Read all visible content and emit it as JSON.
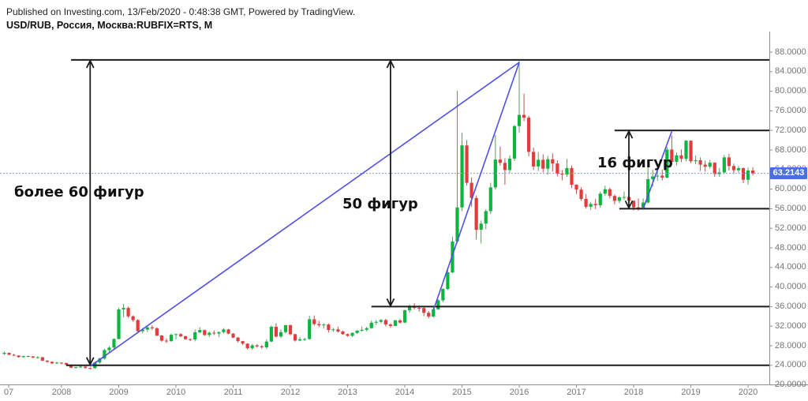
{
  "header": {
    "published": "Published on Investing.com, 13/Feb/2020 - 0:48:38 GMT, Powered by TradingView.",
    "symbol": "USD/RUB, Россия, Москва:RUBFIX=RTS, M"
  },
  "annotations": {
    "left_label": "более 60 фигур",
    "mid_label": "50 фигур",
    "right_label": "16 фигур"
  },
  "price_axis": {
    "labels": [
      "88.0000",
      "84.0000",
      "80.0000",
      "76.0000",
      "72.0000",
      "68.0000",
      "64.0000",
      "60.0000",
      "56.0000",
      "52.0000",
      "48.0000",
      "44.0000",
      "40.0000",
      "36.0000",
      "32.0000",
      "28.0000",
      "24.0000",
      "20.0000"
    ],
    "current_price": "63.2143",
    "badge_color": "#4a6fe0",
    "text_color": "#757575"
  },
  "time_axis": {
    "labels": [
      "07",
      "2008",
      "2009",
      "2010",
      "2011",
      "2012",
      "2013",
      "2014",
      "2015",
      "2016",
      "2017",
      "2018",
      "2019",
      "2020"
    ]
  },
  "chart_data": {
    "type": "candlestick",
    "title": "USD/RUB monthly candlesticks",
    "symbol": "USD/RUB RUBFIX=RTS",
    "interval": "M",
    "start": "2007-01",
    "ylim": [
      20.5,
      88
    ],
    "current_price": 63.2143,
    "colors": {
      "up": "#0cb53d",
      "down": "#e03c3c",
      "up_wick": "#5d9a66",
      "down_wick": "#bb5050",
      "trendline": "#5050e6",
      "level": "#1c1c1c",
      "current_line": "#7e9bf2",
      "axis": "#909090"
    },
    "ohlc": [
      [
        26.33,
        26.8,
        26.15,
        26.55
      ],
      [
        26.55,
        26.6,
        26.1,
        26.16
      ],
      [
        26.16,
        26.35,
        25.9,
        26.01
      ],
      [
        26.01,
        26.05,
        25.55,
        25.69
      ],
      [
        25.69,
        25.95,
        25.55,
        25.9
      ],
      [
        25.9,
        25.95,
        25.65,
        25.82
      ],
      [
        25.82,
        25.9,
        25.4,
        25.6
      ],
      [
        25.6,
        25.85,
        25.35,
        25.65
      ],
      [
        25.65,
        25.7,
        24.85,
        24.95
      ],
      [
        24.95,
        25.05,
        24.55,
        24.72
      ],
      [
        24.72,
        24.8,
        24.25,
        24.4
      ],
      [
        24.4,
        24.7,
        24.3,
        24.55
      ],
      [
        24.55,
        24.6,
        24.2,
        24.48
      ],
      [
        24.48,
        24.55,
        23.95,
        24.12
      ],
      [
        24.12,
        24.2,
        23.4,
        23.52
      ],
      [
        23.52,
        23.7,
        23.3,
        23.65
      ],
      [
        23.65,
        23.9,
        23.45,
        23.74
      ],
      [
        23.74,
        23.8,
        23.35,
        23.46
      ],
      [
        23.46,
        23.55,
        23.12,
        23.42
      ],
      [
        23.42,
        24.75,
        23.25,
        24.58
      ],
      [
        24.58,
        25.55,
        24.3,
        25.37
      ],
      [
        25.37,
        27.4,
        25.2,
        27.1
      ],
      [
        27.1,
        27.9,
        26.7,
        27.61
      ],
      [
        27.61,
        29.5,
        27.3,
        29.38
      ],
      [
        29.38,
        35.8,
        29.3,
        35.41
      ],
      [
        35.41,
        36.55,
        33.8,
        35.72
      ],
      [
        35.72,
        36.0,
        33.7,
        34.01
      ],
      [
        34.01,
        34.2,
        32.9,
        33.25
      ],
      [
        33.25,
        33.4,
        30.7,
        30.98
      ],
      [
        30.98,
        31.6,
        30.6,
        31.29
      ],
      [
        31.29,
        32.1,
        30.8,
        31.76
      ],
      [
        31.76,
        32.2,
        31.2,
        31.57
      ],
      [
        31.57,
        31.8,
        29.9,
        30.09
      ],
      [
        30.09,
        30.2,
        28.8,
        29.05
      ],
      [
        29.05,
        29.5,
        28.55,
        28.95
      ],
      [
        28.95,
        30.5,
        28.8,
        30.24
      ],
      [
        30.24,
        30.5,
        29.3,
        30.36
      ],
      [
        30.36,
        30.6,
        29.75,
        29.95
      ],
      [
        29.95,
        30.05,
        29.2,
        29.36
      ],
      [
        29.36,
        29.5,
        28.95,
        29.29
      ],
      [
        29.29,
        31.3,
        28.9,
        30.74
      ],
      [
        30.74,
        31.8,
        30.55,
        31.2
      ],
      [
        31.2,
        31.3,
        30.0,
        30.19
      ],
      [
        30.19,
        30.9,
        29.8,
        30.66
      ],
      [
        30.66,
        31.1,
        30.2,
        30.51
      ],
      [
        30.51,
        30.9,
        29.75,
        30.78
      ],
      [
        30.78,
        31.6,
        30.5,
        31.33
      ],
      [
        31.33,
        31.45,
        30.35,
        30.48
      ],
      [
        30.48,
        30.6,
        29.55,
        29.67
      ],
      [
        29.67,
        29.8,
        28.7,
        28.94
      ],
      [
        28.94,
        29.0,
        28.15,
        28.43
      ],
      [
        28.43,
        28.5,
        27.25,
        27.5
      ],
      [
        27.5,
        28.4,
        27.15,
        28.08
      ],
      [
        28.08,
        28.35,
        27.6,
        27.87
      ],
      [
        27.87,
        28.15,
        27.4,
        27.68
      ],
      [
        27.68,
        29.3,
        27.35,
        28.86
      ],
      [
        28.86,
        32.15,
        28.7,
        31.88
      ],
      [
        31.88,
        32.6,
        29.7,
        29.88
      ],
      [
        29.88,
        31.35,
        29.6,
        30.78
      ],
      [
        30.78,
        32.3,
        30.5,
        32.2
      ],
      [
        32.2,
        32.35,
        30.15,
        30.36
      ],
      [
        30.36,
        30.45,
        28.85,
        29.07
      ],
      [
        29.07,
        29.8,
        28.9,
        29.33
      ],
      [
        29.33,
        29.65,
        29.0,
        29.36
      ],
      [
        29.36,
        34.1,
        29.25,
        33.41
      ],
      [
        33.41,
        34.2,
        32.1,
        32.43
      ],
      [
        32.43,
        33.1,
        31.8,
        32.19
      ],
      [
        32.19,
        32.6,
        31.5,
        32.33
      ],
      [
        32.33,
        32.55,
        30.7,
        31.22
      ],
      [
        31.22,
        31.65,
        30.85,
        31.34
      ],
      [
        31.34,
        31.9,
        30.7,
        30.91
      ],
      [
        30.91,
        31.1,
        30.25,
        30.37
      ],
      [
        30.37,
        30.5,
        29.85,
        30.03
      ],
      [
        30.03,
        30.75,
        29.8,
        30.62
      ],
      [
        30.62,
        31.2,
        30.4,
        31.08
      ],
      [
        31.08,
        31.95,
        30.85,
        31.26
      ],
      [
        31.26,
        31.85,
        30.95,
        31.59
      ],
      [
        31.59,
        33.1,
        31.5,
        32.71
      ],
      [
        32.71,
        33.25,
        32.25,
        32.89
      ],
      [
        32.89,
        33.45,
        32.6,
        33.25
      ],
      [
        33.25,
        33.5,
        31.95,
        32.35
      ],
      [
        32.35,
        32.55,
        31.7,
        32.06
      ],
      [
        32.06,
        33.3,
        32.0,
        33.19
      ],
      [
        33.19,
        33.45,
        32.5,
        32.73
      ],
      [
        32.73,
        35.4,
        32.65,
        35.24
      ],
      [
        35.24,
        36.4,
        34.7,
        36.05
      ],
      [
        36.05,
        36.7,
        35.4,
        35.75
      ],
      [
        35.75,
        36.25,
        35.0,
        35.7
      ],
      [
        35.7,
        35.85,
        34.05,
        34.74
      ],
      [
        34.74,
        35.1,
        33.6,
        33.98
      ],
      [
        33.98,
        35.75,
        33.7,
        35.44
      ],
      [
        35.44,
        37.5,
        35.3,
        37.29
      ],
      [
        37.29,
        39.75,
        36.9,
        39.6
      ],
      [
        39.6,
        43.55,
        39.4,
        43.0
      ],
      [
        43.0,
        50.3,
        42.8,
        49.32
      ],
      [
        49.32,
        80.1,
        49.0,
        56.26
      ],
      [
        56.26,
        71.5,
        55.5,
        68.93
      ],
      [
        68.93,
        70.0,
        60.7,
        61.29
      ],
      [
        61.29,
        62.4,
        56.45,
        58.19
      ],
      [
        58.19,
        58.7,
        49.7,
        51.7
      ],
      [
        51.7,
        53.6,
        48.9,
        52.97
      ],
      [
        52.97,
        55.9,
        51.8,
        55.52
      ],
      [
        55.52,
        61.3,
        54.9,
        60.35
      ],
      [
        60.35,
        71.05,
        59.9,
        66.05
      ],
      [
        66.05,
        68.7,
        64.8,
        65.37
      ],
      [
        65.37,
        66.3,
        60.9,
        63.9
      ],
      [
        63.9,
        66.9,
        63.3,
        66.24
      ],
      [
        66.24,
        73.1,
        65.8,
        72.88
      ],
      [
        72.88,
        86.2,
        71.5,
        75.17
      ],
      [
        75.17,
        79.5,
        73.9,
        74.6
      ],
      [
        74.6,
        75.0,
        66.7,
        67.61
      ],
      [
        67.61,
        68.5,
        63.9,
        64.63
      ],
      [
        64.63,
        67.6,
        63.7,
        66.0
      ],
      [
        66.0,
        67.1,
        63.4,
        64.17
      ],
      [
        64.17,
        66.8,
        62.9,
        66.1
      ],
      [
        66.1,
        67.3,
        63.6,
        65.25
      ],
      [
        65.25,
        65.9,
        62.6,
        63.16
      ],
      [
        63.16,
        63.9,
        61.8,
        63.0
      ],
      [
        63.0,
        66.2,
        62.5,
        64.3
      ],
      [
        64.3,
        64.8,
        60.2,
        60.9
      ],
      [
        60.9,
        61.0,
        59.0,
        59.9
      ],
      [
        59.9,
        60.4,
        57.6,
        58.0
      ],
      [
        58.0,
        59.0,
        56.0,
        56.4
      ],
      [
        56.4,
        57.4,
        55.8,
        56.98
      ],
      [
        56.98,
        58.0,
        55.9,
        56.69
      ],
      [
        56.69,
        59.5,
        56.2,
        59.08
      ],
      [
        59.08,
        60.7,
        58.6,
        59.98
      ],
      [
        59.98,
        60.3,
        58.1,
        58.6
      ],
      [
        58.6,
        58.9,
        56.9,
        57.6
      ],
      [
        57.6,
        58.6,
        57.1,
        58.32
      ],
      [
        58.32,
        59.5,
        57.8,
        58.4
      ],
      [
        58.4,
        59.2,
        57.2,
        57.63
      ],
      [
        57.63,
        57.7,
        55.65,
        56.29
      ],
      [
        56.29,
        58.1,
        55.6,
        55.9
      ],
      [
        55.9,
        58.1,
        55.8,
        57.26
      ],
      [
        57.26,
        65.05,
        57.1,
        62.04
      ],
      [
        62.04,
        64.0,
        60.5,
        62.59
      ],
      [
        62.59,
        64.1,
        61.7,
        62.76
      ],
      [
        62.76,
        64.0,
        61.8,
        62.35
      ],
      [
        62.35,
        68.6,
        62.2,
        68.08
      ],
      [
        68.08,
        71.0,
        65.2,
        65.59
      ],
      [
        65.59,
        67.5,
        64.8,
        66.9
      ],
      [
        66.9,
        68.1,
        65.5,
        66.2
      ],
      [
        66.2,
        70.0,
        65.7,
        69.9
      ],
      [
        69.9,
        69.95,
        65.3,
        65.7
      ],
      [
        65.7,
        66.9,
        65.1,
        65.9
      ],
      [
        65.9,
        66.5,
        63.7,
        65.0
      ],
      [
        65.0,
        65.8,
        63.6,
        64.6
      ],
      [
        64.6,
        65.95,
        64.2,
        65.4
      ],
      [
        65.4,
        65.5,
        62.5,
        63.08
      ],
      [
        63.08,
        64.3,
        62.5,
        63.42
      ],
      [
        63.42,
        67.0,
        63.1,
        66.49
      ],
      [
        66.49,
        67.2,
        63.8,
        64.72
      ],
      [
        64.72,
        65.2,
        63.1,
        63.87
      ],
      [
        63.87,
        64.8,
        63.3,
        64.28
      ],
      [
        64.28,
        64.45,
        61.2,
        61.91
      ],
      [
        61.91,
        64.4,
        60.9,
        63.8
      ],
      [
        63.8,
        64.5,
        62.8,
        63.21
      ]
    ],
    "levels": [
      {
        "price": 86.4,
        "start": "2008-03"
      },
      {
        "price": 72.0,
        "start": "2017-09"
      },
      {
        "price": 56.0,
        "start": "2017-10"
      },
      {
        "price": 36.0,
        "start": "2013-06"
      },
      {
        "price": 24.0,
        "start": "2008-02"
      }
    ],
    "trendlines": [
      {
        "from": {
          "t": "2008-07",
          "p": 23.8
        },
        "to": {
          "t": "2016-01",
          "p": 85.9
        }
      },
      {
        "from": {
          "t": "2014-07",
          "p": 35.3
        },
        "to": {
          "t": "2016-01",
          "p": 85.9
        }
      },
      {
        "from": {
          "t": "2018-03",
          "p": 56.0
        },
        "to": {
          "t": "2018-09",
          "p": 71.8
        }
      }
    ],
    "arrows": [
      {
        "at": "2008-07",
        "top": 86.4,
        "bottom": 24.0,
        "label": "более 60 фигур"
      },
      {
        "at": "2013-10",
        "top": 86.4,
        "bottom": 36.0,
        "label": "50 фигур"
      },
      {
        "at": "2017-12",
        "top": 72.0,
        "bottom": 56.0,
        "label": "16 фигур"
      }
    ]
  }
}
